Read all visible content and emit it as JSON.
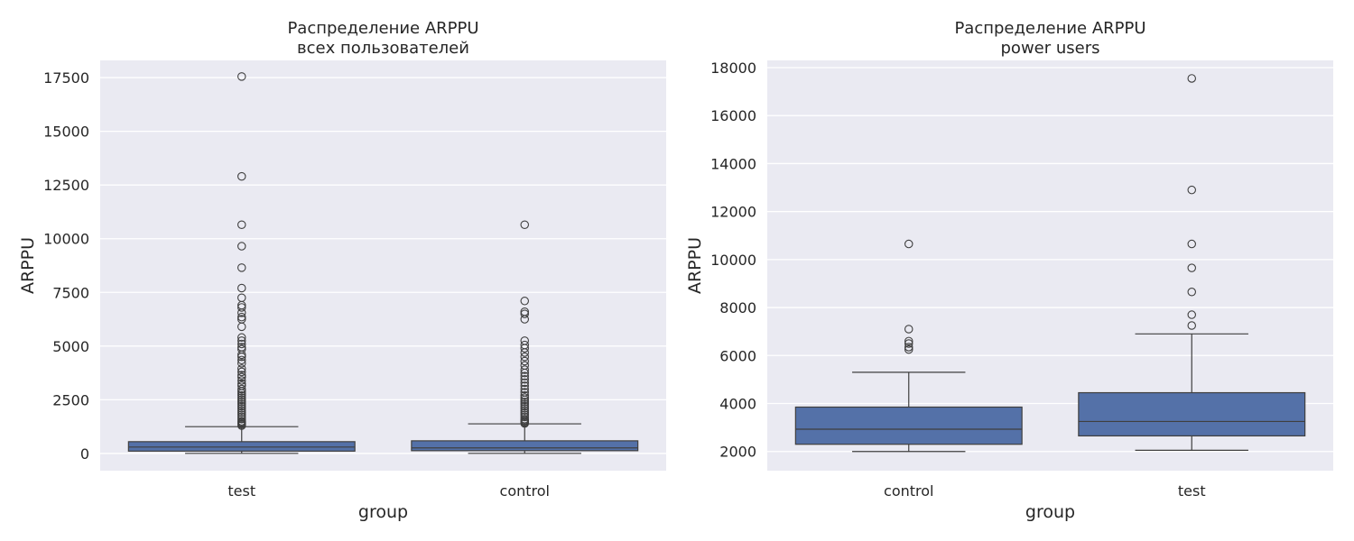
{
  "chart_data": [
    {
      "type": "box",
      "title": [
        "Распределение ARPPU",
        "всех пользователей"
      ],
      "xlabel": "group",
      "ylabel": "ARPPU",
      "ylim": [
        -800,
        18300
      ],
      "yticks": [
        0,
        2500,
        5000,
        7500,
        10000,
        12500,
        15000,
        17500
      ],
      "grid": true,
      "box_color": "#5471a8",
      "categories": [
        "test",
        "control"
      ],
      "boxes": [
        {
          "name": "test",
          "whisker_low": 5,
          "q1": 110,
          "median": 300,
          "q3": 550,
          "whisker_high": 1250,
          "fliers": [
            17550,
            12900,
            10650,
            9650,
            8650,
            7700,
            7250,
            6900,
            6800,
            6550,
            6350,
            6250,
            5900,
            5400,
            5250,
            5100,
            4950,
            4850,
            4600,
            4500,
            4350,
            4200,
            3950,
            3800,
            3650,
            3550,
            3400,
            3250,
            3150,
            3000,
            2900,
            2800,
            2700,
            2600,
            2500,
            2400,
            2300,
            2200,
            2100,
            2000,
            1900,
            1800,
            1700,
            1600,
            1500,
            1450,
            1400,
            1350,
            1300
          ]
        },
        {
          "name": "control",
          "whisker_low": 5,
          "q1": 130,
          "median": 260,
          "q3": 590,
          "whisker_high": 1380,
          "fliers": [
            10650,
            7100,
            6600,
            6500,
            6250,
            5250,
            5050,
            4900,
            4700,
            4500,
            4300,
            4100,
            3900,
            3750,
            3600,
            3450,
            3300,
            3150,
            3000,
            2850,
            2700,
            2600,
            2500,
            2400,
            2300,
            2200,
            2100,
            2000,
            1900,
            1800,
            1700,
            1600,
            1550,
            1500,
            1450,
            1400
          ]
        }
      ]
    },
    {
      "type": "box",
      "title": [
        "Распределение ARPPU",
        "power users"
      ],
      "xlabel": "group",
      "ylabel": "ARPPU",
      "ylim": [
        1200,
        18300
      ],
      "yticks": [
        2000,
        4000,
        6000,
        8000,
        10000,
        12000,
        14000,
        16000,
        18000
      ],
      "grid": true,
      "box_color": "#5471a8",
      "categories": [
        "control",
        "test"
      ],
      "boxes": [
        {
          "name": "control",
          "whisker_low": 2000,
          "q1": 2300,
          "median": 2930,
          "q3": 3850,
          "whisker_high": 5300,
          "fliers": [
            10650,
            7100,
            6600,
            6500,
            6350,
            6250
          ]
        },
        {
          "name": "test",
          "whisker_low": 2050,
          "q1": 2650,
          "median": 3250,
          "q3": 4450,
          "whisker_high": 6900,
          "fliers": [
            17550,
            12900,
            10650,
            9650,
            8650,
            7700,
            7250
          ]
        }
      ]
    }
  ]
}
